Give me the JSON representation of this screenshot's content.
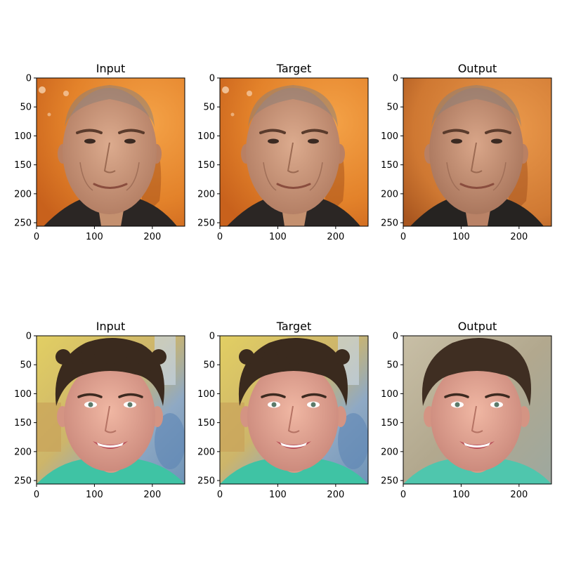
{
  "figure": {
    "panels": [
      {
        "title": "Input",
        "subject": "man-orange-background",
        "variant": "input"
      },
      {
        "title": "Target",
        "subject": "man-orange-background",
        "variant": "target"
      },
      {
        "title": "Output",
        "subject": "man-orange-background",
        "variant": "output"
      },
      {
        "title": "Input",
        "subject": "boy-curly-hair",
        "variant": "input"
      },
      {
        "title": "Target",
        "subject": "boy-curly-hair",
        "variant": "target"
      },
      {
        "title": "Output",
        "subject": "boy-curly-hair",
        "variant": "output"
      }
    ],
    "x_ticks": [
      "0",
      "100",
      "200"
    ],
    "y_ticks": [
      "0",
      "50",
      "100",
      "150",
      "200",
      "250"
    ],
    "x_tick_values": [
      0,
      100,
      200
    ],
    "y_tick_values": [
      0,
      50,
      100,
      150,
      200,
      250
    ],
    "image_extent": 256,
    "colors": {
      "orange_bg": "#e8862c",
      "orange_bg_light": "#f0a45a",
      "man_skin": "#c9957a",
      "jacket": "#2b2624",
      "boy_bg_yellow": "#d9c25a",
      "boy_bg_blue": "#8fb0cc",
      "boy_skin": "#e0a28e",
      "boy_hair": "#3a2a1e",
      "shirt_teal": "#3fc3a4",
      "output_bg_grey": "#b8ad98"
    }
  }
}
